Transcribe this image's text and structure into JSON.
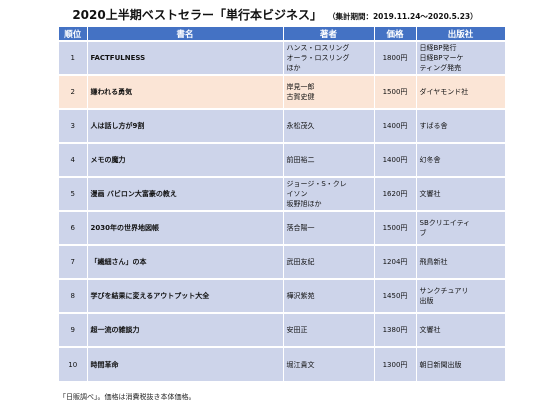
{
  "title": "2020上半期ベストセラー「単行本ビジネス」",
  "period": "（集計期間：2019.11.24～2020.5.23）",
  "headers": {
    "rank": "順位",
    "title": "書名",
    "author": "著者",
    "price": "価格",
    "publisher": "出版社"
  },
  "rows": [
    {
      "rank": "1",
      "title": "FACTFULNESS",
      "author": "ハンス・ロスリング\nオーラ・ロスリング\nほか",
      "price": "1800円",
      "publisher": "日経BP発行\n日経BPマーケ\nティング発売"
    },
    {
      "rank": "2",
      "title": "嫌われる勇気",
      "author": "岸見一郎\n古賀史健",
      "price": "1500円",
      "publisher": "ダイヤモンド社"
    },
    {
      "rank": "3",
      "title": "人は話し方が9割",
      "author": "永松茂久",
      "price": "1400円",
      "publisher": "すばる舎"
    },
    {
      "rank": "4",
      "title": "メモの魔力",
      "author": "前田裕二",
      "price": "1400円",
      "publisher": "幻冬舎"
    },
    {
      "rank": "5",
      "title": "漫画 バビロン大富豪の教え",
      "author": "ジョージ・S・クレ\nイソン\n坂野旭ほか",
      "price": "1620円",
      "publisher": "文響社"
    },
    {
      "rank": "6",
      "title": "2030年の世界地図帳",
      "author": "落合陽一",
      "price": "1500円",
      "publisher": "SBクリエイティ\nブ"
    },
    {
      "rank": "7",
      "title": "「繊細さん」の本",
      "author": "武田友紀",
      "price": "1204円",
      "publisher": "飛鳥新社"
    },
    {
      "rank": "8",
      "title": "学びを結果に変えるアウトプット大全",
      "author": "樺沢紫苑",
      "price": "1450円",
      "publisher": "サンクチュアリ\n出版"
    },
    {
      "rank": "9",
      "title": "超一流の雑談力",
      "author": "安田正",
      "price": "1380円",
      "publisher": "文響社"
    },
    {
      "rank": "10",
      "title": "時間革命",
      "author": "堀江貴文",
      "price": "1300円",
      "publisher": "朝日新聞出版"
    }
  ],
  "highlight_row": 2,
  "colors": {
    "header": "#4472c4",
    "row": "#cdd4ea",
    "highlight": "#fbe5d6"
  },
  "footnote": "「日販調べ」。価格は消費税抜き本体価格。"
}
